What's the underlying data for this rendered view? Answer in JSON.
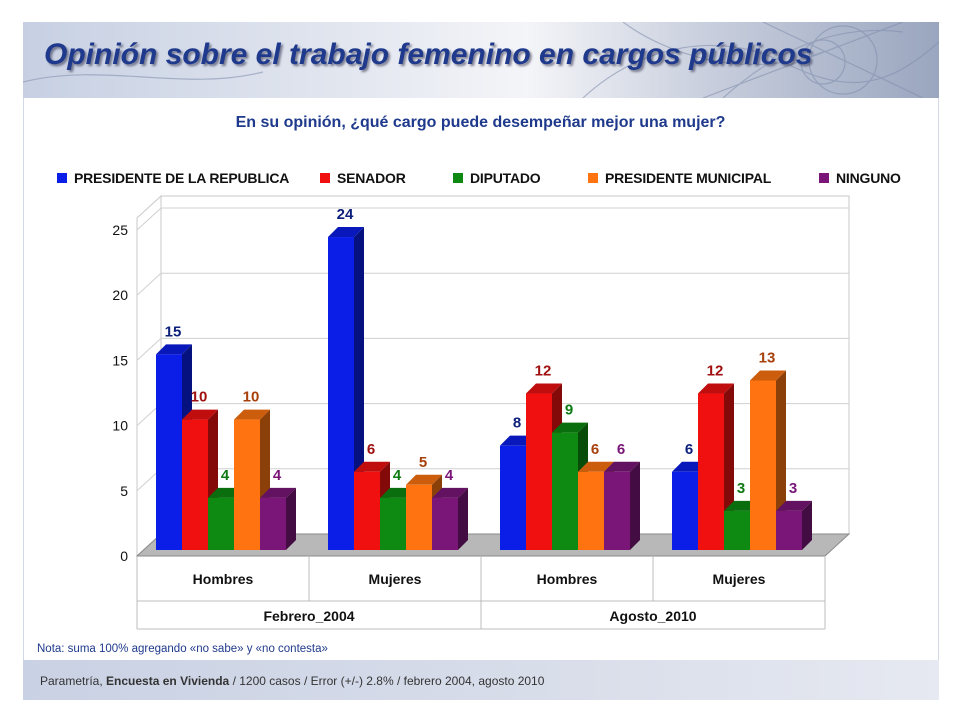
{
  "header": {
    "title": "Opinión sobre el trabajo femenino en cargos públicos"
  },
  "chart_data": {
    "type": "bar",
    "subtitle": "En su opinión, ¿qué cargo puede desempeñar mejor una mujer?",
    "groups": [
      {
        "label": "Febrero_2004",
        "categories": [
          "Hombres",
          "Mujeres"
        ]
      },
      {
        "label": "Agosto_2010",
        "categories": [
          "Hombres",
          "Mujeres"
        ]
      }
    ],
    "categories": [
      "Hombres",
      "Mujeres",
      "Hombres",
      "Mujeres"
    ],
    "series": [
      {
        "name": "PRESIDENTE DE LA REPUBLICA",
        "color": "#0a1ee8",
        "label_color": "#0c1f7a",
        "values": [
          15,
          24,
          8,
          6
        ]
      },
      {
        "name": "SENADOR",
        "color": "#f01010",
        "label_color": "#a01010",
        "values": [
          10,
          6,
          12,
          12
        ]
      },
      {
        "name": "DIPUTADO",
        "color": "#0e8a12",
        "label_color": "#0e7a12",
        "values": [
          4,
          4,
          9,
          3
        ]
      },
      {
        "name": "PRESIDENTE MUNICIPAL",
        "color": "#ff7410",
        "label_color": "#a8400c",
        "values": [
          10,
          5,
          6,
          13
        ]
      },
      {
        "name": "NINGUNO",
        "color": "#7a1678",
        "label_color": "#7a1678",
        "values": [
          4,
          4,
          6,
          3
        ]
      }
    ],
    "ylim": [
      0,
      25
    ],
    "yticks": [
      0,
      5,
      10,
      15,
      20,
      25
    ],
    "grid": true,
    "legend": "top"
  },
  "nota": "Nota: suma 100% agregando «no sabe» y «no contesta»",
  "footer": {
    "source": "Parametría,",
    "survey": "Encuesta en Vivienda",
    "details": "/ 1200 casos / Error (+/-) 2.8% / febrero 2004, agosto 2010"
  }
}
